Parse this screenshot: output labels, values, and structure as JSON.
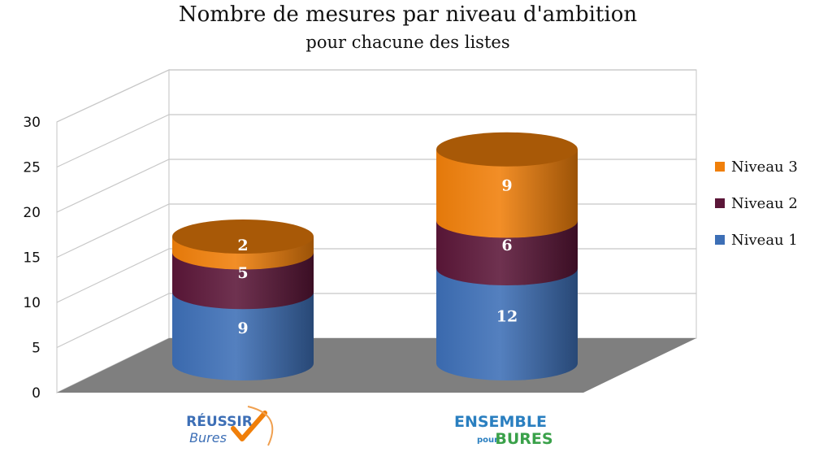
{
  "chart_data": {
    "type": "bar",
    "title": "Nombre de mesures par niveau d'ambition",
    "subtitle": "pour chacune des listes",
    "categories": [
      "Réussir Bures",
      "Ensemble pour Bures"
    ],
    "series": [
      {
        "name": "Niveau 1",
        "values": [
          9,
          12
        ],
        "color": "#3d6fb6"
      },
      {
        "name": "Niveau 2",
        "values": [
          5,
          6
        ],
        "color": "#5b1638"
      },
      {
        "name": "Niveau 3",
        "values": [
          2,
          9
        ],
        "color": "#f07f0a"
      }
    ],
    "ylim": [
      0,
      30
    ],
    "yticks": [
      0,
      5,
      10,
      15,
      20,
      25,
      30
    ],
    "stacked": true,
    "grid": true,
    "legend_position": "right",
    "legend_order": [
      "Niveau 3",
      "Niveau 2",
      "Niveau 1"
    ]
  },
  "logos": {
    "left": {
      "line1": "RÉUSSIR",
      "line2": "Bures",
      "color1": "#3d6fb6",
      "color2": "#f07f0a"
    },
    "right": {
      "line1": "ENSEMBLE",
      "line2a": "pour",
      "line2b": "BURES",
      "color1": "#2a7fc0",
      "color2": "#3aa14a"
    }
  }
}
